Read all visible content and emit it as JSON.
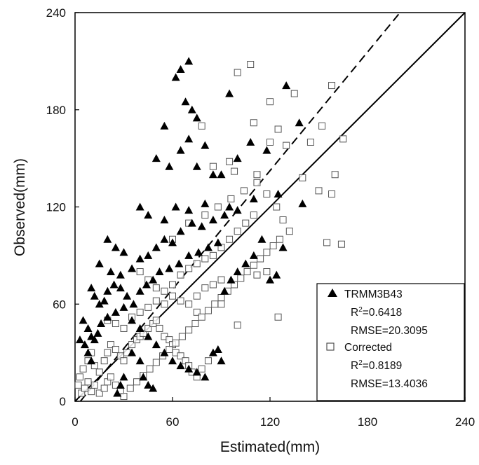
{
  "chart_data": {
    "type": "scatter",
    "xlabel": "Estimated(mm)",
    "ylabel": "Observed(mm)",
    "xlim": [
      0,
      240
    ],
    "ylim": [
      0,
      240
    ],
    "xticks": [
      "0",
      "60",
      "120",
      "180",
      "240"
    ],
    "yticks": [
      "0",
      "60",
      "120",
      "180",
      "240"
    ],
    "grid": false,
    "legend_position": "bottom-right",
    "reference_lines": [
      {
        "name": "1:1 line",
        "style": "solid",
        "slope": 1,
        "intercept": 0
      },
      {
        "name": "regression",
        "style": "dashed",
        "slope": 1.22,
        "intercept": -4
      }
    ],
    "legend": {
      "entries": [
        {
          "marker": "filled-triangle",
          "label": "TRMM3B43",
          "r2_prefix": "R",
          "r2_sup": "2",
          "r2_value": "=0.6418",
          "rmse": "RMSE=20.3095"
        },
        {
          "marker": "open-square",
          "label": "Corrected",
          "r2_prefix": "R",
          "r2_sup": "2",
          "r2_value": "=0.8189",
          "rmse": "RMSE=13.4036"
        }
      ]
    },
    "series": [
      {
        "name": "TRMM3B43",
        "marker": "filled-triangle",
        "color": "#000000",
        "points": [
          [
            65,
            205
          ],
          [
            70,
            210
          ],
          [
            62,
            200
          ],
          [
            95,
            190
          ],
          [
            130,
            195
          ],
          [
            68,
            185
          ],
          [
            72,
            180
          ],
          [
            75,
            175
          ],
          [
            55,
            170
          ],
          [
            138,
            172
          ],
          [
            108,
            160
          ],
          [
            118,
            155
          ],
          [
            70,
            162
          ],
          [
            65,
            155
          ],
          [
            80,
            158
          ],
          [
            50,
            150
          ],
          [
            58,
            145
          ],
          [
            75,
            145
          ],
          [
            85,
            140
          ],
          [
            90,
            140
          ],
          [
            100,
            150
          ],
          [
            40,
            120
          ],
          [
            45,
            115
          ],
          [
            55,
            112
          ],
          [
            62,
            120
          ],
          [
            70,
            118
          ],
          [
            80,
            122
          ],
          [
            95,
            120
          ],
          [
            110,
            125
          ],
          [
            125,
            128
          ],
          [
            140,
            122
          ],
          [
            115,
            100
          ],
          [
            128,
            95
          ],
          [
            20,
            100
          ],
          [
            25,
            95
          ],
          [
            30,
            92
          ],
          [
            15,
            85
          ],
          [
            22,
            80
          ],
          [
            28,
            78
          ],
          [
            35,
            82
          ],
          [
            40,
            88
          ],
          [
            45,
            90
          ],
          [
            50,
            95
          ],
          [
            55,
            100
          ],
          [
            60,
            98
          ],
          [
            65,
            105
          ],
          [
            72,
            110
          ],
          [
            78,
            108
          ],
          [
            85,
            112
          ],
          [
            92,
            115
          ],
          [
            100,
            118
          ],
          [
            10,
            70
          ],
          [
            12,
            65
          ],
          [
            15,
            60
          ],
          [
            18,
            62
          ],
          [
            20,
            68
          ],
          [
            24,
            72
          ],
          [
            28,
            70
          ],
          [
            32,
            65
          ],
          [
            36,
            60
          ],
          [
            40,
            68
          ],
          [
            44,
            72
          ],
          [
            48,
            75
          ],
          [
            52,
            80
          ],
          [
            58,
            82
          ],
          [
            64,
            85
          ],
          [
            70,
            90
          ],
          [
            76,
            92
          ],
          [
            82,
            95
          ],
          [
            88,
            98
          ],
          [
            5,
            50
          ],
          [
            8,
            45
          ],
          [
            10,
            40
          ],
          [
            12,
            38
          ],
          [
            14,
            42
          ],
          [
            16,
            48
          ],
          [
            20,
            52
          ],
          [
            25,
            55
          ],
          [
            30,
            58
          ],
          [
            35,
            50
          ],
          [
            40,
            45
          ],
          [
            45,
            40
          ],
          [
            50,
            35
          ],
          [
            55,
            30
          ],
          [
            60,
            25
          ],
          [
            65,
            22
          ],
          [
            70,
            20
          ],
          [
            75,
            18
          ],
          [
            80,
            15
          ],
          [
            85,
            30
          ],
          [
            88,
            32
          ],
          [
            90,
            25
          ],
          [
            92,
            68
          ],
          [
            96,
            75
          ],
          [
            100,
            80
          ],
          [
            105,
            85
          ],
          [
            110,
            90
          ],
          [
            120,
            75
          ],
          [
            124,
            78
          ],
          [
            35,
            30
          ],
          [
            40,
            25
          ],
          [
            42,
            15
          ],
          [
            45,
            10
          ],
          [
            48,
            8
          ],
          [
            30,
            15
          ],
          [
            28,
            10
          ],
          [
            26,
            5
          ],
          [
            8,
            30
          ],
          [
            10,
            25
          ],
          [
            6,
            35
          ],
          [
            3,
            38
          ]
        ]
      },
      {
        "name": "Corrected",
        "marker": "open-square",
        "color": "#000000",
        "points": [
          [
            100,
            203
          ],
          [
            108,
            208
          ],
          [
            120,
            185
          ],
          [
            135,
            190
          ],
          [
            158,
            195
          ],
          [
            78,
            170
          ],
          [
            95,
            148
          ],
          [
            110,
            172
          ],
          [
            125,
            168
          ],
          [
            130,
            158
          ],
          [
            145,
            160
          ],
          [
            152,
            170
          ],
          [
            160,
            140
          ],
          [
            165,
            162
          ],
          [
            85,
            145
          ],
          [
            98,
            142
          ],
          [
            112,
            140
          ],
          [
            120,
            160
          ],
          [
            140,
            138
          ],
          [
            150,
            130
          ],
          [
            158,
            128
          ],
          [
            155,
            98
          ],
          [
            164,
            97
          ],
          [
            125,
            52
          ],
          [
            118,
            80
          ],
          [
            112,
            78
          ],
          [
            100,
            47
          ],
          [
            90,
            60
          ],
          [
            75,
            55
          ],
          [
            60,
            100
          ],
          [
            70,
            110
          ],
          [
            80,
            115
          ],
          [
            88,
            120
          ],
          [
            96,
            125
          ],
          [
            104,
            130
          ],
          [
            112,
            135
          ],
          [
            118,
            128
          ],
          [
            124,
            120
          ],
          [
            128,
            112
          ],
          [
            132,
            105
          ],
          [
            40,
            80
          ],
          [
            45,
            75
          ],
          [
            50,
            70
          ],
          [
            55,
            68
          ],
          [
            60,
            72
          ],
          [
            65,
            78
          ],
          [
            70,
            82
          ],
          [
            75,
            85
          ],
          [
            80,
            88
          ],
          [
            85,
            90
          ],
          [
            90,
            95
          ],
          [
            95,
            100
          ],
          [
            100,
            105
          ],
          [
            105,
            110
          ],
          [
            110,
            115
          ],
          [
            20,
            50
          ],
          [
            25,
            48
          ],
          [
            30,
            45
          ],
          [
            35,
            52
          ],
          [
            40,
            55
          ],
          [
            45,
            58
          ],
          [
            50,
            62
          ],
          [
            55,
            60
          ],
          [
            60,
            65
          ],
          [
            65,
            62
          ],
          [
            70,
            60
          ],
          [
            75,
            65
          ],
          [
            80,
            70
          ],
          [
            85,
            72
          ],
          [
            90,
            75
          ],
          [
            5,
            20
          ],
          [
            8,
            25
          ],
          [
            10,
            30
          ],
          [
            12,
            22
          ],
          [
            15,
            18
          ],
          [
            18,
            25
          ],
          [
            20,
            30
          ],
          [
            22,
            35
          ],
          [
            25,
            32
          ],
          [
            28,
            28
          ],
          [
            30,
            25
          ],
          [
            32,
            30
          ],
          [
            35,
            35
          ],
          [
            38,
            38
          ],
          [
            40,
            40
          ],
          [
            42,
            42
          ],
          [
            45,
            45
          ],
          [
            48,
            48
          ],
          [
            50,
            50
          ],
          [
            52,
            45
          ],
          [
            55,
            40
          ],
          [
            58,
            38
          ],
          [
            60,
            35
          ],
          [
            62,
            30
          ],
          [
            65,
            28
          ],
          [
            68,
            25
          ],
          [
            70,
            22
          ],
          [
            72,
            18
          ],
          [
            75,
            15
          ],
          [
            78,
            20
          ],
          [
            82,
            25
          ],
          [
            2,
            10
          ],
          [
            3,
            15
          ],
          [
            4,
            5
          ],
          [
            6,
            8
          ],
          [
            8,
            12
          ],
          [
            10,
            6
          ],
          [
            12,
            10
          ],
          [
            15,
            5
          ],
          [
            18,
            8
          ],
          [
            20,
            12
          ],
          [
            22,
            15
          ],
          [
            25,
            10
          ],
          [
            28,
            6
          ],
          [
            30,
            3
          ],
          [
            34,
            8
          ],
          [
            38,
            12
          ],
          [
            42,
            16
          ],
          [
            46,
            20
          ],
          [
            50,
            24
          ],
          [
            54,
            28
          ],
          [
            58,
            32
          ],
          [
            62,
            36
          ],
          [
            66,
            40
          ],
          [
            70,
            44
          ],
          [
            74,
            48
          ],
          [
            78,
            52
          ],
          [
            82,
            56
          ],
          [
            86,
            60
          ],
          [
            90,
            64
          ],
          [
            94,
            68
          ],
          [
            98,
            72
          ],
          [
            102,
            76
          ],
          [
            106,
            80
          ],
          [
            110,
            84
          ],
          [
            114,
            88
          ],
          [
            118,
            92
          ],
          [
            122,
            96
          ],
          [
            126,
            100
          ]
        ]
      }
    ]
  }
}
